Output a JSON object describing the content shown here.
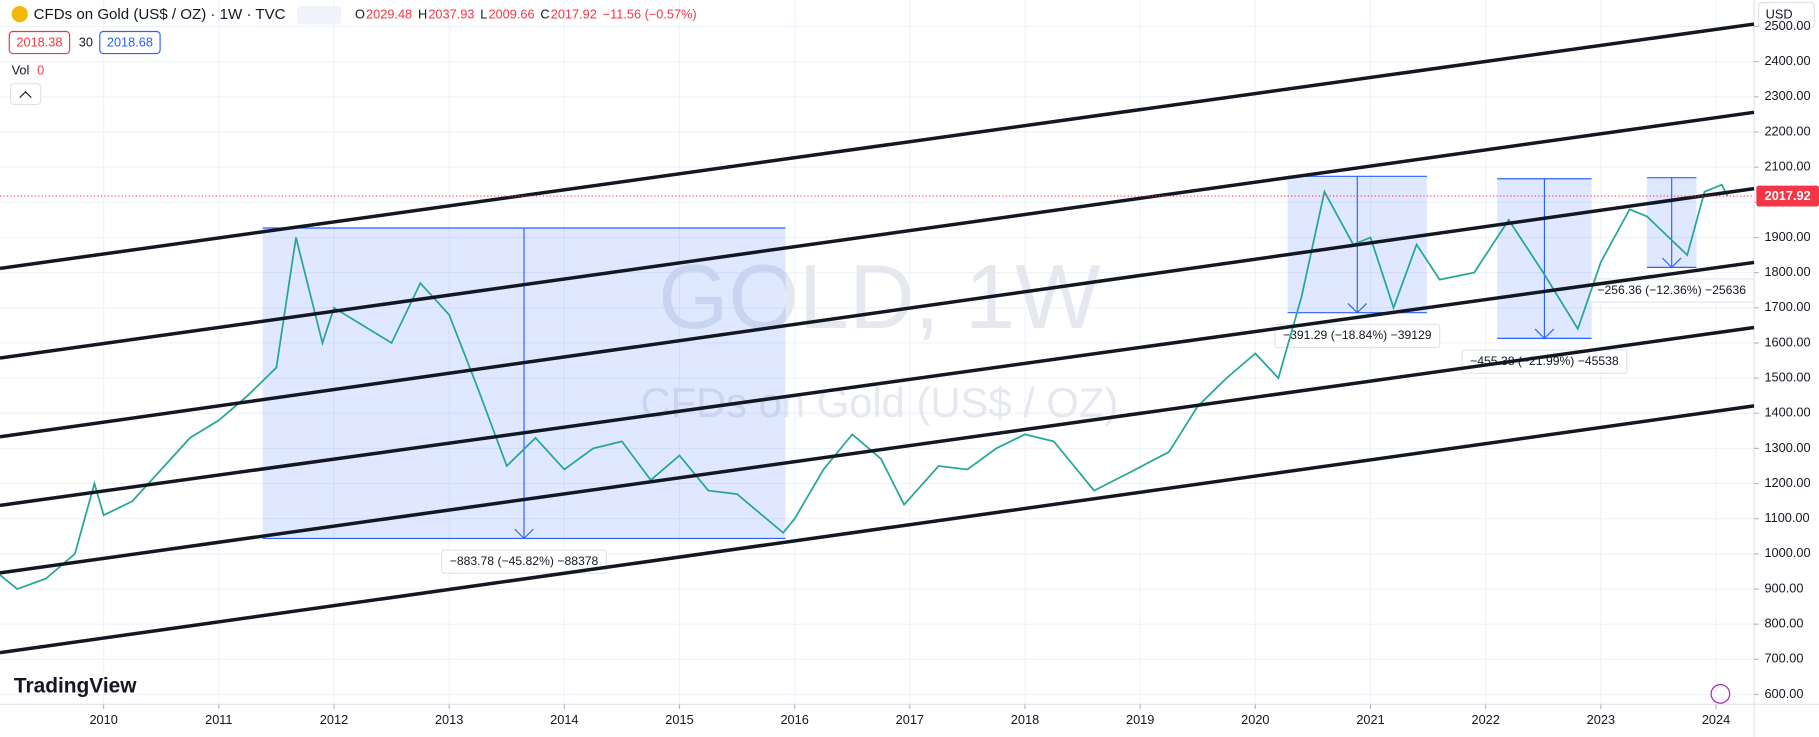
{
  "header": {
    "symbol": "CFDs on Gold (US$ / OZ) · 1W · TVC",
    "ohlc": [
      {
        "label": "O",
        "value": "2029.48"
      },
      {
        "label": "H",
        "value": "2037.93"
      },
      {
        "label": "L",
        "value": "2009.66"
      },
      {
        "label": "C",
        "value": "2017.92"
      }
    ],
    "change": "−11.56 (−0.57%)",
    "bid": "2018.38",
    "spread": "30",
    "ask": "2018.68",
    "vol_label": "Vol",
    "vol_value": "0",
    "currency": "USD",
    "watermark": "GOLD, 1W",
    "watermark_sub": "CFDs on Gold (US$ / OZ)",
    "brand": "TradingView"
  },
  "chart_data": {
    "type": "line",
    "color": "#26a69a",
    "x": [
      2009.1,
      2009.25,
      2009.5,
      2009.75,
      2009.92,
      2010.0,
      2010.25,
      2010.5,
      2010.75,
      2011.0,
      2011.25,
      2011.5,
      2011.67,
      2011.9,
      2012.0,
      2012.25,
      2012.5,
      2012.75,
      2013.0,
      2013.25,
      2013.5,
      2013.75,
      2014.0,
      2014.25,
      2014.5,
      2014.75,
      2015.0,
      2015.25,
      2015.5,
      2015.9,
      2016.0,
      2016.25,
      2016.5,
      2016.75,
      2016.95,
      2017.25,
      2017.5,
      2017.75,
      2018.0,
      2018.25,
      2018.6,
      2018.9,
      2019.25,
      2019.5,
      2019.75,
      2020.0,
      2020.2,
      2020.4,
      2020.6,
      2020.85,
      2021.0,
      2021.2,
      2021.4,
      2021.6,
      2021.9,
      2022.2,
      2022.5,
      2022.8,
      2023.0,
      2023.25,
      2023.4,
      2023.75,
      2023.9,
      2024.05,
      2024.1
    ],
    "values": [
      940,
      900,
      930,
      1000,
      1200,
      1110,
      1150,
      1240,
      1330,
      1380,
      1450,
      1530,
      1900,
      1600,
      1700,
      1650,
      1600,
      1770,
      1680,
      1470,
      1250,
      1330,
      1240,
      1300,
      1320,
      1210,
      1280,
      1180,
      1170,
      1060,
      1100,
      1240,
      1340,
      1270,
      1140,
      1250,
      1240,
      1300,
      1340,
      1320,
      1180,
      1230,
      1290,
      1420,
      1500,
      1570,
      1500,
      1730,
      2030,
      1880,
      1900,
      1700,
      1880,
      1780,
      1800,
      1950,
      1800,
      1640,
      1830,
      1980,
      1960,
      1850,
      2030,
      2050,
      2018
    ],
    "xlim": [
      2009.1,
      2024.33
    ],
    "ylim": [
      572,
      2575
    ],
    "xticks": [
      2010,
      2011,
      2012,
      2013,
      2014,
      2015,
      2016,
      2017,
      2018,
      2019,
      2020,
      2021,
      2022,
      2023,
      2024
    ],
    "yticks": [
      {
        "value": 600,
        "label": "600.00"
      },
      {
        "value": 700,
        "label": "700.00"
      },
      {
        "value": 800,
        "label": "800.00"
      },
      {
        "value": 900,
        "label": "900.00"
      },
      {
        "value": 1000,
        "label": "1000.00"
      },
      {
        "value": 1100,
        "label": "1100.00"
      },
      {
        "value": 1200,
        "label": "1200.00"
      },
      {
        "value": 1300,
        "label": "1300.00"
      },
      {
        "value": 1400,
        "label": "1400.00"
      },
      {
        "value": 1500,
        "label": "1500.00"
      },
      {
        "value": 1600,
        "label": "1600.00"
      },
      {
        "value": 1700,
        "label": "1700.00"
      },
      {
        "value": 1800,
        "label": "1800.00"
      },
      {
        "value": 1900,
        "label": "1900.00"
      },
      {
        "value": 2000,
        "label": "2000.00"
      },
      {
        "value": 2100,
        "label": "2100.00"
      },
      {
        "value": 2200,
        "label": "2200.00"
      },
      {
        "value": 2300,
        "label": "2300.00"
      },
      {
        "value": 2400,
        "label": "2400.00"
      },
      {
        "value": 2500,
        "label": "2500.00"
      }
    ],
    "grid": true,
    "last_price": {
      "value": 2017.92,
      "label": "2017.92",
      "color": "#f23645"
    },
    "trendlines": [
      {
        "x": [
          2009.1,
          2024.33
        ],
        "y": [
          1812,
          2507
        ]
      },
      {
        "x": [
          2009.1,
          2024.33
        ],
        "y": [
          1557,
          2256
        ]
      },
      {
        "x": [
          2009.1,
          2024.33
        ],
        "y": [
          1333,
          2039
        ]
      },
      {
        "x": [
          2009.1,
          2024.33
        ],
        "y": [
          1138,
          1829
        ]
      },
      {
        "x": [
          2009.1,
          2024.33
        ],
        "y": [
          946,
          1644
        ]
      },
      {
        "x": [
          2009.1,
          2024.33
        ],
        "y": [
          719,
          1421
        ]
      }
    ],
    "measures": [
      {
        "x": [
          2011.38,
          2015.92
        ],
        "y": [
          1927,
          1044
        ],
        "label": "−883.78 (−45.82%) −88378"
      },
      {
        "x": [
          2020.28,
          2021.49
        ],
        "y": [
          2074,
          1686
        ],
        "label": "−391.29 (−18.84%) −39129"
      },
      {
        "x": [
          2022.1,
          2022.92
        ],
        "y": [
          2067,
          1613
        ],
        "label": "−455.38 (−21.99%) −45538"
      },
      {
        "x": [
          2023.4,
          2023.83
        ],
        "y": [
          2070,
          1815
        ],
        "label": "−256.36 (−12.36%) −25636"
      }
    ]
  }
}
